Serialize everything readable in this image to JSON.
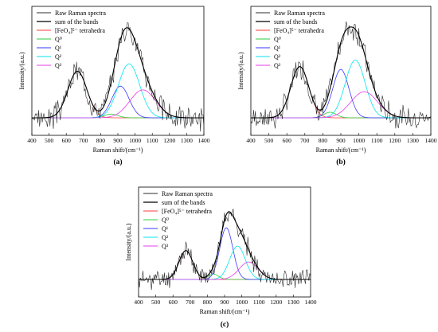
{
  "figure": {
    "colors": {
      "raw": "#2b2b2b",
      "sum": "#000000",
      "fe": "#ff3b3b",
      "q0": "#2ecc40",
      "q1": "#3a3aff",
      "q2": "#00e5ee",
      "q3": "#e83ce8"
    }
  },
  "chart_data": [
    {
      "type": "line",
      "panel_label": "(a)",
      "xlabel": "Raman shift/(cm⁻¹)",
      "ylabel": "Intensity/(a.u.)",
      "xlim": [
        400,
        1400
      ],
      "xticks": [
        400,
        500,
        600,
        700,
        800,
        900,
        1000,
        1100,
        1200,
        1300,
        1400
      ],
      "ylim": [
        0,
        1
      ],
      "legend_position": "top-left",
      "legend": [
        {
          "key": "raw",
          "label": "Raw Raman spectra"
        },
        {
          "key": "sum",
          "label": "sum of the bands"
        },
        {
          "key": "fe",
          "label": "[FeO₄]⁵⁻ tetrahedra"
        },
        {
          "key": "q0",
          "label": "Q⁰"
        },
        {
          "key": "q1",
          "label": "Q¹"
        },
        {
          "key": "q2",
          "label": "Q²"
        },
        {
          "key": "q3",
          "label": "Q³"
        }
      ],
      "bands": [
        {
          "key": "fe",
          "center": 665,
          "amplitude": 0.5,
          "width": 55
        },
        {
          "key": "q0",
          "center": 860,
          "amplitude": 0.04,
          "width": 40
        },
        {
          "key": "q1",
          "center": 915,
          "amplitude": 0.34,
          "width": 50
        },
        {
          "key": "q2",
          "center": 965,
          "amplitude": 0.58,
          "width": 62
        },
        {
          "key": "q3",
          "center": 1045,
          "amplitude": 0.3,
          "width": 75
        }
      ],
      "noise_amplitude": 0.1,
      "seed": 3
    },
    {
      "type": "line",
      "panel_label": "(b)",
      "xlabel": "Raman shift/(cm⁻¹)",
      "ylabel": "Intensity/(a.u.)",
      "xlim": [
        400,
        1400
      ],
      "xticks": [
        400,
        500,
        600,
        700,
        800,
        900,
        1000,
        1100,
        1200,
        1300,
        1400
      ],
      "ylim": [
        0,
        1
      ],
      "legend_position": "top-left",
      "legend": [
        {
          "key": "raw",
          "label": "Raw Raman spectra"
        },
        {
          "key": "sum",
          "label": "sum of the bands"
        },
        {
          "key": "fe",
          "label": "[FeO₄]⁵⁻ tetrahedra"
        },
        {
          "key": "q0",
          "label": "Q⁰"
        },
        {
          "key": "q1",
          "label": "Q¹"
        },
        {
          "key": "q2",
          "label": "Q²"
        },
        {
          "key": "q3",
          "label": "Q³"
        }
      ],
      "bands": [
        {
          "key": "fe",
          "center": 672,
          "amplitude": 0.55,
          "width": 50
        },
        {
          "key": "q0",
          "center": 840,
          "amplitude": 0.06,
          "width": 35
        },
        {
          "key": "q1",
          "center": 900,
          "amplitude": 0.52,
          "width": 45
        },
        {
          "key": "q2",
          "center": 980,
          "amplitude": 0.62,
          "width": 55
        },
        {
          "key": "q3",
          "center": 1030,
          "amplitude": 0.28,
          "width": 75
        }
      ],
      "noise_amplitude": 0.1,
      "seed": 7
    },
    {
      "type": "line",
      "panel_label": "(c)",
      "xlabel": "Raman shift/(cm⁻¹)",
      "ylabel": "Intensity/(a.u.)",
      "xlim": [
        400,
        1400
      ],
      "xticks": [
        400,
        500,
        600,
        700,
        800,
        900,
        1000,
        1100,
        1200,
        1300,
        1400
      ],
      "ylim": [
        0,
        1
      ],
      "legend_position": "top-left",
      "legend": [
        {
          "key": "raw",
          "label": "Raw Raman spectra"
        },
        {
          "key": "sum",
          "label": "sum of the bands"
        },
        {
          "key": "fe",
          "label": "[FeO₄]⁵⁻ tetrahedra"
        },
        {
          "key": "q0",
          "label": "Q⁰"
        },
        {
          "key": "q1",
          "label": "Q¹"
        },
        {
          "key": "q2",
          "label": "Q²"
        },
        {
          "key": "q3",
          "label": "Q³"
        }
      ],
      "bands": [
        {
          "key": "fe",
          "center": 675,
          "amplitude": 0.38,
          "width": 40
        },
        {
          "key": "q0",
          "center": 835,
          "amplitude": 0.07,
          "width": 30
        },
        {
          "key": "q1",
          "center": 910,
          "amplitude": 0.68,
          "width": 38
        },
        {
          "key": "q2",
          "center": 975,
          "amplitude": 0.44,
          "width": 45
        },
        {
          "key": "q3",
          "center": 1040,
          "amplitude": 0.23,
          "width": 55
        }
      ],
      "noise_amplitude": 0.1,
      "seed": 11
    }
  ]
}
